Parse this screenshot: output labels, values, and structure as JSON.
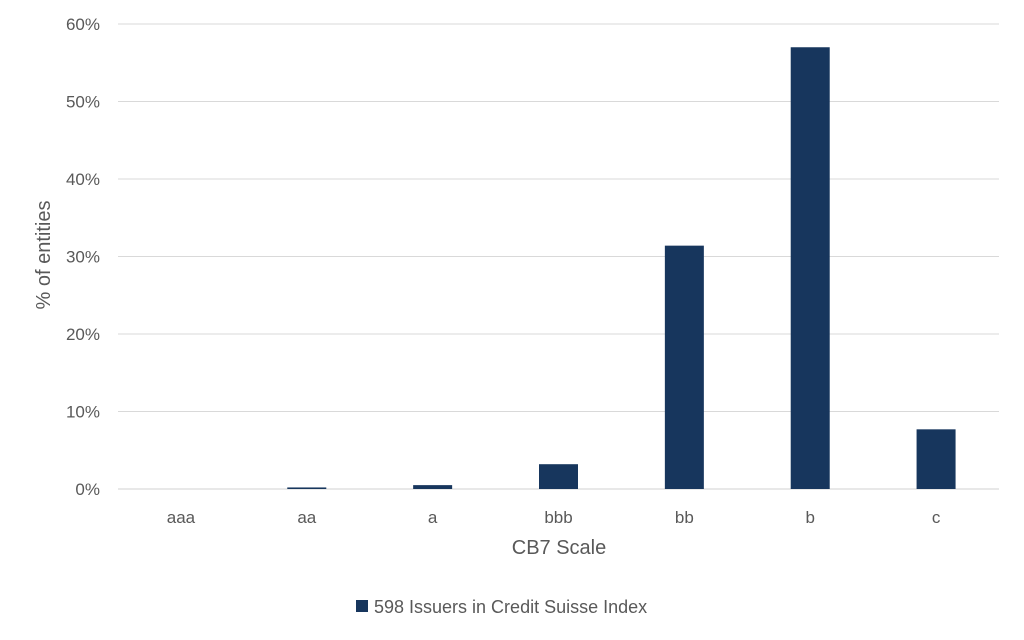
{
  "chart_data": {
    "type": "bar",
    "title": "",
    "xlabel": "CB7 Scale",
    "ylabel": "% of entities",
    "categories": [
      "aaa",
      "aa",
      "a",
      "bbb",
      "bb",
      "b",
      "c"
    ],
    "series": [
      {
        "name": "598 Issuers in Credit Suisse Index",
        "values": [
          0.0,
          0.2,
          0.5,
          3.2,
          31.4,
          57.0,
          7.7
        ],
        "color": "#17365d"
      }
    ],
    "ylim": [
      0,
      60
    ],
    "yticks": [
      0,
      10,
      20,
      30,
      40,
      50,
      60
    ],
    "ytick_labels": [
      "0%",
      "10%",
      "20%",
      "30%",
      "40%",
      "50%",
      "60%"
    ],
    "grid": true,
    "legend_position": "bottom"
  }
}
